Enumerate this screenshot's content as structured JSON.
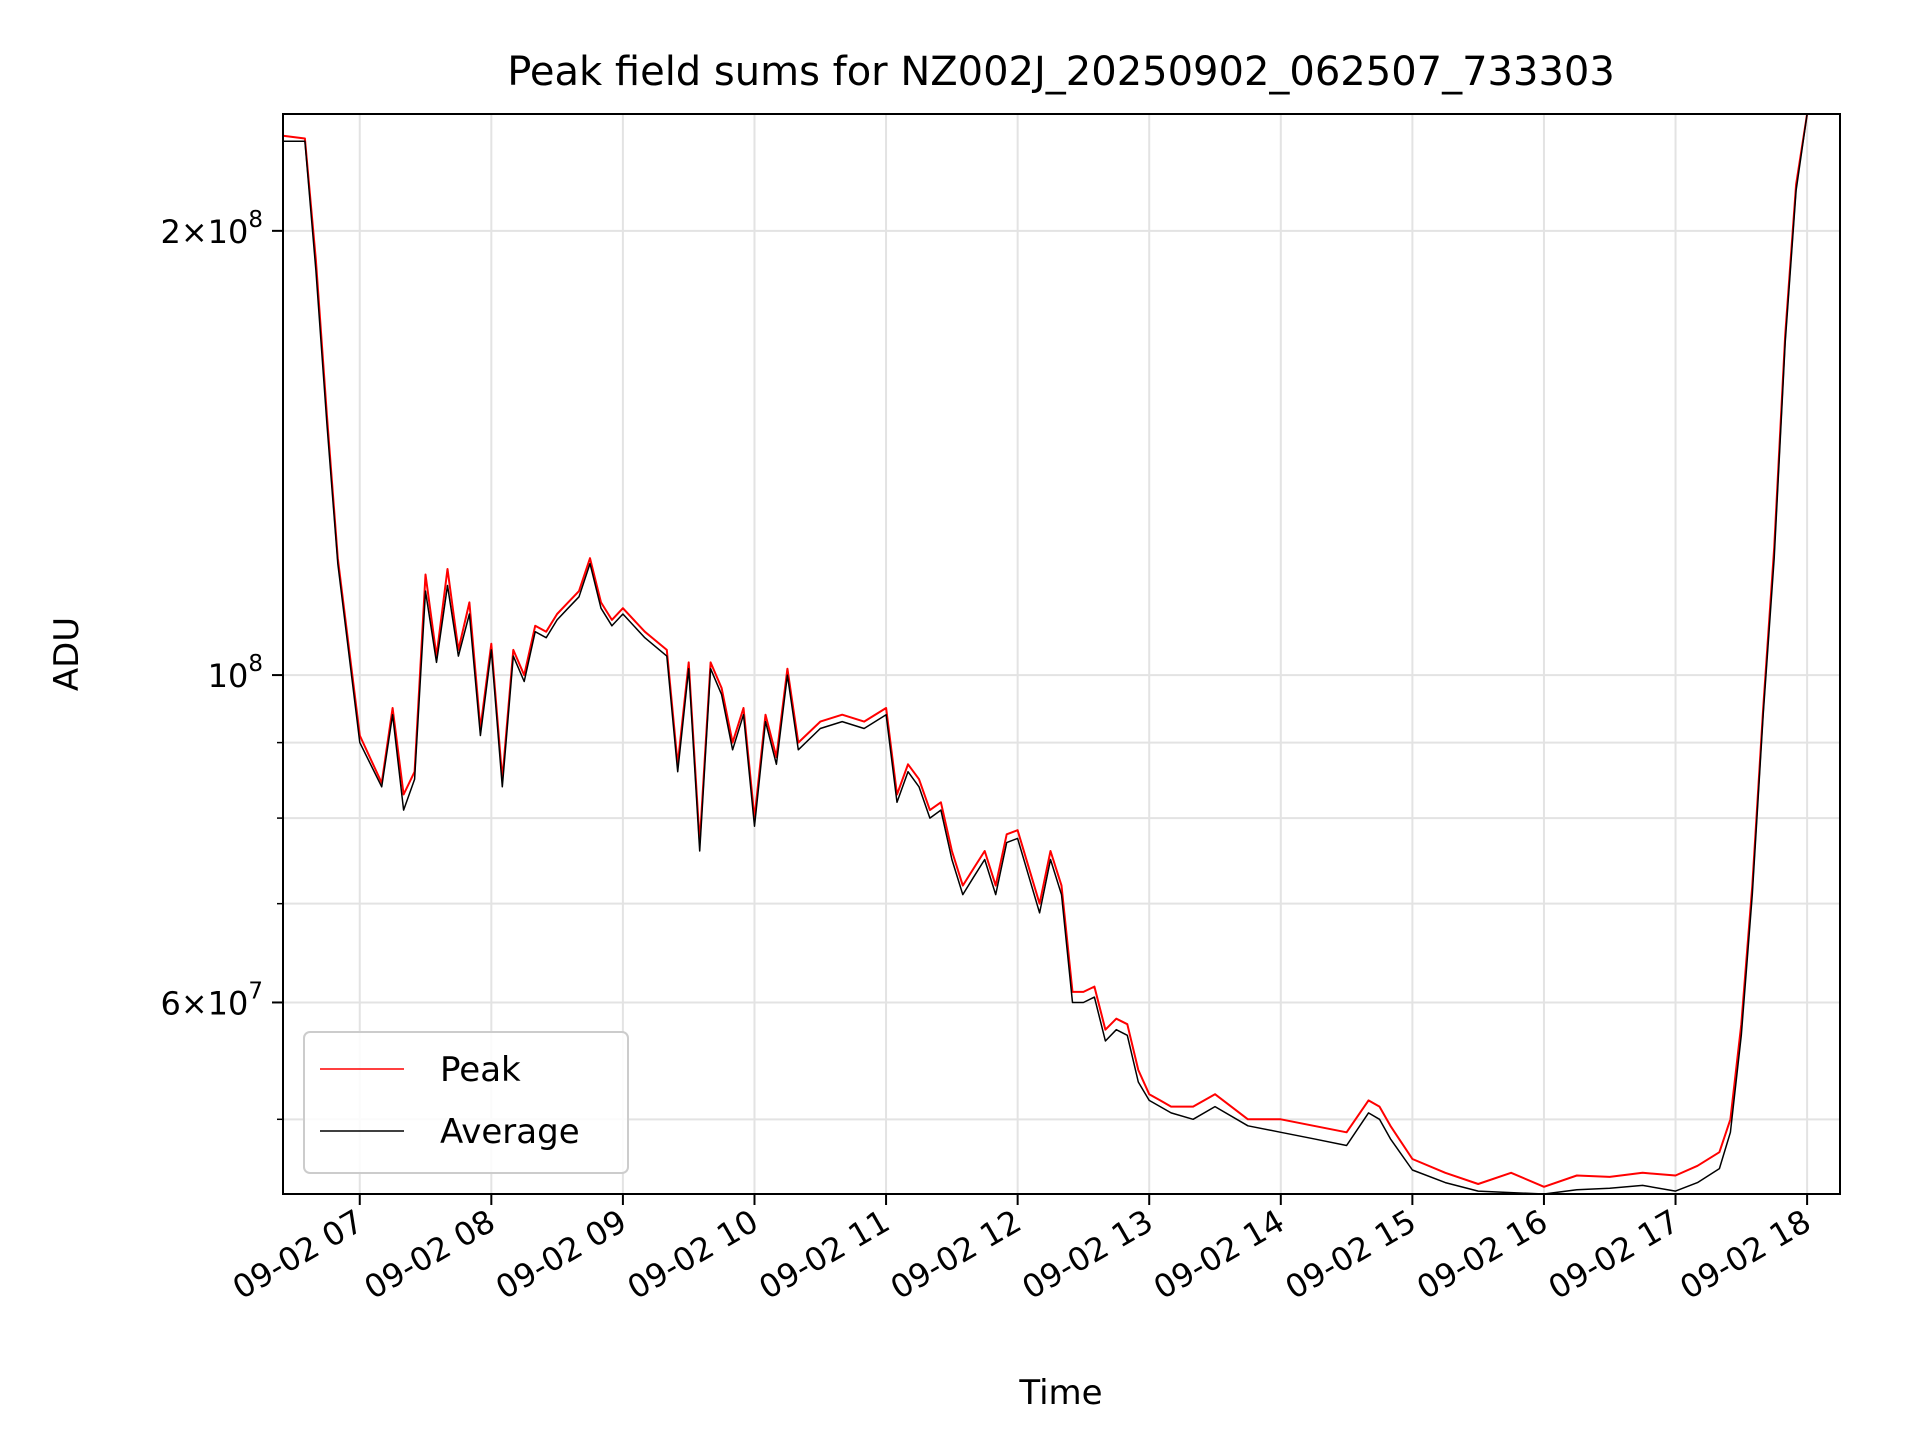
{
  "chart_data": {
    "type": "line",
    "title": "Peak field sums for NZ002J_20250902_062507_733303",
    "xlabel": "Time",
    "ylabel": "ADU",
    "y_scale": "log",
    "ylim": [
      44500000,
      240000000
    ],
    "xlim": [
      "09-02 06:25",
      "09-02 18:15"
    ],
    "grid": true,
    "legend_position": "lower-left",
    "x_ticks": [
      "09-02 07",
      "09-02 08",
      "09-02 09",
      "09-02 10",
      "09-02 11",
      "09-02 12",
      "09-02 13",
      "09-02 14",
      "09-02 15",
      "09-02 16",
      "09-02 17",
      "09-02 18"
    ],
    "y_ticks_major": [
      {
        "label": "2 × 10^8",
        "mantissa": "2",
        "base": "10",
        "exp": "8",
        "value": 200000000
      },
      {
        "label": "10^8",
        "mantissa": "",
        "base": "10",
        "exp": "8",
        "value": 100000000
      },
      {
        "label": "6 × 10^7",
        "mantissa": "6",
        "base": "10",
        "exp": "7",
        "value": 60000000
      }
    ],
    "y_ticks_minor": [
      50000000,
      70000000,
      80000000,
      90000000
    ],
    "series": [
      {
        "name": "Peak",
        "color": "#ff0000",
        "x": [
          "09-02 06:25",
          "09-02 06:35",
          "09-02 06:40",
          "09-02 06:45",
          "09-02 06:50",
          "09-02 07:00",
          "09-02 07:10",
          "09-02 07:15",
          "09-02 07:20",
          "09-02 07:25",
          "09-02 07:30",
          "09-02 07:35",
          "09-02 07:40",
          "09-02 07:45",
          "09-02 07:50",
          "09-02 07:55",
          "09-02 08:00",
          "09-02 08:05",
          "09-02 08:10",
          "09-02 08:15",
          "09-02 08:20",
          "09-02 08:25",
          "09-02 08:30",
          "09-02 08:35",
          "09-02 08:40",
          "09-02 08:45",
          "09-02 08:50",
          "09-02 08:55",
          "09-02 09:00",
          "09-02 09:10",
          "09-02 09:20",
          "09-02 09:25",
          "09-02 09:30",
          "09-02 09:35",
          "09-02 09:40",
          "09-02 09:45",
          "09-02 09:50",
          "09-02 09:55",
          "09-02 10:00",
          "09-02 10:05",
          "09-02 10:10",
          "09-02 10:15",
          "09-02 10:20",
          "09-02 10:30",
          "09-02 10:40",
          "09-02 10:50",
          "09-02 11:00",
          "09-02 11:05",
          "09-02 11:10",
          "09-02 11:15",
          "09-02 11:20",
          "09-02 11:25",
          "09-02 11:30",
          "09-02 11:35",
          "09-02 11:40",
          "09-02 11:45",
          "09-02 11:50",
          "09-02 11:55",
          "09-02 12:00",
          "09-02 12:10",
          "09-02 12:15",
          "09-02 12:20",
          "09-02 12:25",
          "09-02 12:30",
          "09-02 12:35",
          "09-02 12:40",
          "09-02 12:45",
          "09-02 12:50",
          "09-02 12:55",
          "09-02 13:00",
          "09-02 13:05",
          "09-02 13:10",
          "09-02 13:20",
          "09-02 13:30",
          "09-02 13:45",
          "09-02 14:00",
          "09-02 14:15",
          "09-02 14:30",
          "09-02 14:40",
          "09-02 14:45",
          "09-02 14:50",
          "09-02 15:00",
          "09-02 15:15",
          "09-02 15:30",
          "09-02 15:45",
          "09-02 16:00",
          "09-02 16:15",
          "09-02 16:30",
          "09-02 16:45",
          "09-02 17:00",
          "09-02 17:10",
          "09-02 17:20",
          "09-02 17:25",
          "09-02 17:30",
          "09-02 17:35",
          "09-02 17:40",
          "09-02 17:45",
          "09-02 17:50",
          "09-02 17:55",
          "09-02 18:00"
        ],
        "values": [
          232000000,
          231000000,
          191000000,
          150000000,
          120000000,
          91000000,
          84500000,
          95000000,
          83000000,
          86000000,
          117000000,
          103000000,
          118000000,
          104000000,
          112000000,
          92000000,
          105000000,
          85000000,
          104000000,
          100000000,
          108000000,
          107000000,
          110000000,
          112000000,
          114000000,
          120000000,
          112000000,
          109000000,
          111000000,
          107000000,
          104000000,
          87000000,
          102000000,
          77000000,
          102000000,
          98000000,
          90000000,
          95000000,
          80000000,
          94000000,
          88000000,
          101000000,
          90000000,
          93000000,
          94000000,
          93000000,
          95000000,
          83000000,
          87000000,
          85000000,
          81000000,
          82000000,
          76000000,
          72000000,
          74000000,
          76000000,
          72000000,
          78000000,
          78500000,
          70000000,
          76000000,
          72000000,
          61000000,
          61000000,
          61500000,
          57500000,
          58500000,
          58000000,
          54000000,
          52000000,
          51500000,
          51000000,
          51000000,
          52000000,
          50000000,
          50000000,
          49500000,
          49000000,
          51500000,
          51000000,
          49500000,
          47000000,
          46000000,
          45200000,
          46000000,
          45000000,
          45800000,
          45700000,
          46000000,
          45800000,
          46500000,
          47500000,
          50000000,
          58000000,
          72000000,
          95000000,
          122000000,
          170000000,
          215000000,
          240000000
        ]
      },
      {
        "name": "Average",
        "color": "#000000",
        "x": [
          "09-02 06:25",
          "09-02 06:35",
          "09-02 06:40",
          "09-02 06:45",
          "09-02 06:50",
          "09-02 07:00",
          "09-02 07:10",
          "09-02 07:15",
          "09-02 07:20",
          "09-02 07:25",
          "09-02 07:30",
          "09-02 07:35",
          "09-02 07:40",
          "09-02 07:45",
          "09-02 07:50",
          "09-02 07:55",
          "09-02 08:00",
          "09-02 08:05",
          "09-02 08:10",
          "09-02 08:15",
          "09-02 08:20",
          "09-02 08:25",
          "09-02 08:30",
          "09-02 08:35",
          "09-02 08:40",
          "09-02 08:45",
          "09-02 08:50",
          "09-02 08:55",
          "09-02 09:00",
          "09-02 09:10",
          "09-02 09:20",
          "09-02 09:25",
          "09-02 09:30",
          "09-02 09:35",
          "09-02 09:40",
          "09-02 09:45",
          "09-02 09:50",
          "09-02 09:55",
          "09-02 10:00",
          "09-02 10:05",
          "09-02 10:10",
          "09-02 10:15",
          "09-02 10:20",
          "09-02 10:30",
          "09-02 10:40",
          "09-02 10:50",
          "09-02 11:00",
          "09-02 11:05",
          "09-02 11:10",
          "09-02 11:15",
          "09-02 11:20",
          "09-02 11:25",
          "09-02 11:30",
          "09-02 11:35",
          "09-02 11:40",
          "09-02 11:45",
          "09-02 11:50",
          "09-02 11:55",
          "09-02 12:00",
          "09-02 12:10",
          "09-02 12:15",
          "09-02 12:20",
          "09-02 12:25",
          "09-02 12:30",
          "09-02 12:35",
          "09-02 12:40",
          "09-02 12:45",
          "09-02 12:50",
          "09-02 12:55",
          "09-02 13:00",
          "09-02 13:05",
          "09-02 13:10",
          "09-02 13:20",
          "09-02 13:30",
          "09-02 13:45",
          "09-02 14:00",
          "09-02 14:15",
          "09-02 14:30",
          "09-02 14:40",
          "09-02 14:45",
          "09-02 14:50",
          "09-02 15:00",
          "09-02 15:15",
          "09-02 15:30",
          "09-02 15:45",
          "09-02 16:00",
          "09-02 16:15",
          "09-02 16:30",
          "09-02 16:45",
          "09-02 17:00",
          "09-02 17:10",
          "09-02 17:20",
          "09-02 17:25",
          "09-02 17:30",
          "09-02 17:35",
          "09-02 17:40",
          "09-02 17:45",
          "09-02 17:50",
          "09-02 17:55",
          "09-02 18:00"
        ],
        "values": [
          230000000,
          230000000,
          188000000,
          148000000,
          119000000,
          90000000,
          84000000,
          94000000,
          81000000,
          85000000,
          114000000,
          102000000,
          115000000,
          103000000,
          110000000,
          91000000,
          104000000,
          84000000,
          103000000,
          99000000,
          107000000,
          106000000,
          109000000,
          111000000,
          113000000,
          119000000,
          111000000,
          108000000,
          110000000,
          106000000,
          103000000,
          86000000,
          101000000,
          76000000,
          101000000,
          97000000,
          89000000,
          94000000,
          79000000,
          93000000,
          87000000,
          100000000,
          89000000,
          92000000,
          93000000,
          92000000,
          94000000,
          82000000,
          86000000,
          84000000,
          80000000,
          81000000,
          75000000,
          71000000,
          73000000,
          75000000,
          71000000,
          77000000,
          77500000,
          69000000,
          75000000,
          71000000,
          60000000,
          60000000,
          60500000,
          56500000,
          57500000,
          57000000,
          53000000,
          51500000,
          51000000,
          50500000,
          50000000,
          51000000,
          49500000,
          49000000,
          48500000,
          48000000,
          50500000,
          50000000,
          48500000,
          46200000,
          45300000,
          44700000,
          44600000,
          44500000,
          44800000,
          44900000,
          45100000,
          44700000,
          45300000,
          46300000,
          49000000,
          57000000,
          71000000,
          94000000,
          120000000,
          168000000,
          213000000,
          240000000
        ]
      }
    ]
  }
}
